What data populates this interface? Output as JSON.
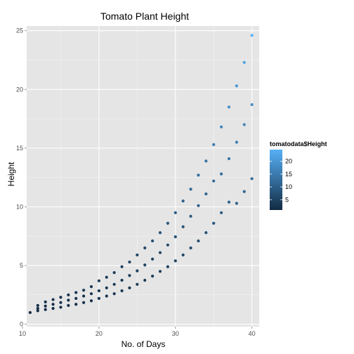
{
  "chart_data": {
    "type": "scatter",
    "title": "Tomato Plant Height",
    "xlabel": "No. of Days",
    "ylabel": "Height",
    "xlim": [
      10.55,
      40.95
    ],
    "ylim": [
      -0.2,
      25.4
    ],
    "x_ticks": [
      10,
      20,
      30,
      40
    ],
    "y_ticks": [
      0,
      5,
      10,
      15,
      20,
      25
    ],
    "grid": true,
    "background": "#e5e5e5",
    "legend": {
      "title": "tomatodata$Height",
      "placement": "right",
      "labels": [
        5,
        10,
        15,
        20
      ],
      "range": [
        0.95,
        24.6
      ],
      "color_low": "#132b43",
      "color_high": "#56b1f7"
    },
    "series": [
      {
        "x": [
          11,
          12,
          13,
          14,
          15,
          16,
          17,
          18,
          19,
          20,
          21,
          22,
          23,
          24,
          25,
          26,
          27,
          28,
          29,
          30,
          31,
          32,
          33,
          34,
          35,
          36,
          37,
          38,
          39,
          40
        ],
        "y": [
          1.0,
          1.6,
          1.9,
          2.1,
          2.3,
          2.5,
          2.7,
          2.9,
          3.2,
          3.7,
          4.0,
          4.4,
          4.9,
          5.3,
          5.9,
          6.5,
          7.1,
          7.8,
          8.6,
          9.5,
          10.5,
          11.5,
          12.7,
          13.9,
          15.3,
          16.8,
          18.5,
          20.3,
          22.3,
          24.6
        ]
      },
      {
        "x": [
          12,
          13,
          14,
          15,
          16,
          17,
          18,
          19,
          20,
          21,
          22,
          23,
          24,
          25,
          26,
          27,
          28,
          29,
          30,
          31,
          32,
          33,
          34,
          35,
          36,
          37,
          38,
          39,
          40
        ],
        "y": [
          1.35,
          1.55,
          1.7,
          1.85,
          2.05,
          2.2,
          2.4,
          2.6,
          2.85,
          3.1,
          3.4,
          3.75,
          4.15,
          4.55,
          5.05,
          5.55,
          6.1,
          6.75,
          7.45,
          8.3,
          9.2,
          10.1,
          11.1,
          12.2,
          12.8,
          14.1,
          15.5,
          17.0,
          18.7
        ]
      },
      {
        "x": [
          12,
          13,
          14,
          15,
          16,
          17,
          18,
          19,
          20,
          21,
          22,
          23,
          24,
          25,
          26,
          27,
          28,
          29,
          30,
          31,
          32,
          33,
          34,
          35,
          36,
          37,
          38,
          39,
          40
        ],
        "y": [
          1.15,
          1.25,
          1.35,
          1.45,
          1.6,
          1.7,
          1.85,
          2.0,
          2.2,
          2.4,
          2.6,
          2.85,
          3.1,
          3.4,
          3.75,
          4.1,
          4.5,
          4.9,
          5.4,
          5.9,
          6.5,
          7.1,
          7.8,
          8.6,
          9.5,
          10.4,
          10.3,
          11.3,
          12.4
        ]
      }
    ]
  }
}
